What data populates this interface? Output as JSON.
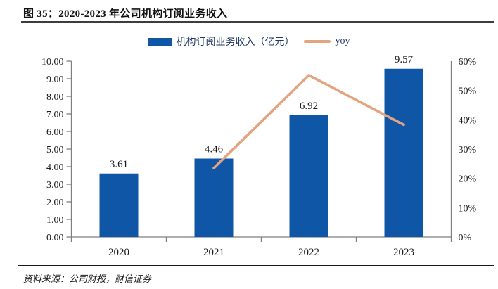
{
  "header": {
    "title": "图 35：2020-2023 年公司机构订阅业务收入"
  },
  "legend": {
    "bar_label": "机构订阅业务收入（亿元）",
    "line_label": "yoy"
  },
  "footer": {
    "source": "资料来源：公司财报，财信证券"
  },
  "colors": {
    "bar": "#0F57A6",
    "line": "#E2A481",
    "legend_text": "#1F3864",
    "axis": "#7F7F7F",
    "text": "#1A1A1A"
  },
  "chart_data": {
    "type": "bar",
    "title": "图 35：2020-2023 年公司机构订阅业务收入",
    "categories": [
      "2020",
      "2021",
      "2022",
      "2023"
    ],
    "series": [
      {
        "name": "机构订阅业务收入（亿元）",
        "type": "bar",
        "axis": "left",
        "values": [
          3.61,
          4.46,
          6.92,
          9.57
        ],
        "labels": [
          "3.61",
          "4.46",
          "6.92",
          "9.57"
        ]
      },
      {
        "name": "yoy",
        "type": "line",
        "axis": "right",
        "values": [
          null,
          23.5,
          55.2,
          38.3
        ]
      }
    ],
    "left_axis": {
      "min": 0,
      "max": 10,
      "tick_labels": [
        "0.00",
        "1.00",
        "2.00",
        "3.00",
        "4.00",
        "5.00",
        "6.00",
        "7.00",
        "8.00",
        "9.00",
        "10.00"
      ]
    },
    "right_axis": {
      "min": 0,
      "max": 60,
      "tick_labels": [
        "0%",
        "10%",
        "20%",
        "30%",
        "40%",
        "50%",
        "60%"
      ]
    },
    "legend_position": "top",
    "grid": false
  }
}
